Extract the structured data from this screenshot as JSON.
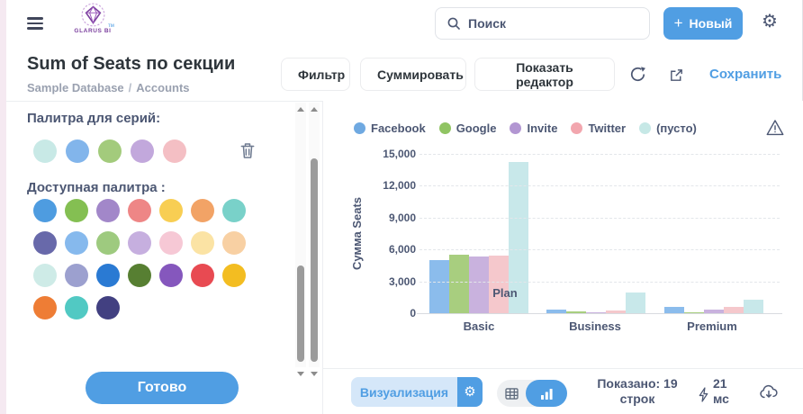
{
  "app": {
    "brand_color": "#509EE3",
    "text_color": "#4C5773"
  },
  "header": {
    "logo_text": "GLARUS BI",
    "logo_tm": "тм",
    "search_placeholder": "Поиск",
    "new_button_plus": "+",
    "new_button_label": "Новый"
  },
  "title_bar": {
    "title": "Sum of Seats по секции",
    "breadcrumb": {
      "database": "Sample Database",
      "separator": "/",
      "table": "Accounts"
    },
    "filter_button": "Фильтр",
    "summarize_button": "Суммировать",
    "show_editor_button": "Показать редактор",
    "save_link": "Сохранить"
  },
  "sidebar": {
    "series_palette_label": "Палитра для серий:",
    "series_colors": [
      "#C8E9E6",
      "#82B5EB",
      "#A3CB7C",
      "#C2A8DC",
      "#F4BFC4"
    ],
    "available_palette_label": "Доступная палитра :",
    "palette_colors": [
      "#4E9CE0",
      "#84BF52",
      "#A287C9",
      "#EE8686",
      "#F8CE53",
      "#F2A366",
      "#79D1C9",
      "#6869AA",
      "#86B9ED",
      "#9ECA7F",
      "#C6AFDF",
      "#F6C8D5",
      "#FBE3A4",
      "#F8D0A3",
      "#CEEBE7",
      "#9CA0CF",
      "#2A7AD3",
      "#577F32",
      "#8557BD",
      "#E84A52",
      "#F3BD21",
      "#EE7D35",
      "#51C9C3",
      "#424081"
    ],
    "done_button": "Готово"
  },
  "chart_data": {
    "type": "bar",
    "categories": [
      "Basic",
      "Business",
      "Premium"
    ],
    "series": [
      {
        "name": "Facebook",
        "legend_color": "#6FA9E1",
        "bar_color": "#8BBCEC",
        "values": [
          5000,
          350,
          600
        ]
      },
      {
        "name": "Google",
        "legend_color": "#90C463",
        "bar_color": "#A8CE7F",
        "values": [
          5500,
          150,
          130
        ]
      },
      {
        "name": "Invite",
        "legend_color": "#B296D2",
        "bar_color": "#C9B2DE",
        "values": [
          5350,
          100,
          380
        ]
      },
      {
        "name": "Twitter",
        "legend_color": "#F2A6AE",
        "bar_color": "#F5C8CC",
        "values": [
          5450,
          300,
          560
        ]
      },
      {
        "name": "(пусто)",
        "legend_color": "#C6E8E6",
        "bar_color": "#C8E8EA",
        "values": [
          14200,
          1950,
          1250
        ]
      }
    ],
    "xlabel": "Plan",
    "ylabel": "Сумма Seats",
    "ylim": [
      0,
      15000
    ],
    "ytick_values": [
      0,
      3000,
      6000,
      9000,
      12000,
      15000
    ],
    "ytick_labels": [
      "0",
      "3,000",
      "6,000",
      "9,000",
      "12,000",
      "15,000"
    ],
    "legend_position": "top",
    "gridlines": "dashed"
  },
  "footer": {
    "visualization_button": "Визуализация",
    "rows_shown_text": "Показано: 19 строк",
    "query_time_text": "21 мс"
  }
}
